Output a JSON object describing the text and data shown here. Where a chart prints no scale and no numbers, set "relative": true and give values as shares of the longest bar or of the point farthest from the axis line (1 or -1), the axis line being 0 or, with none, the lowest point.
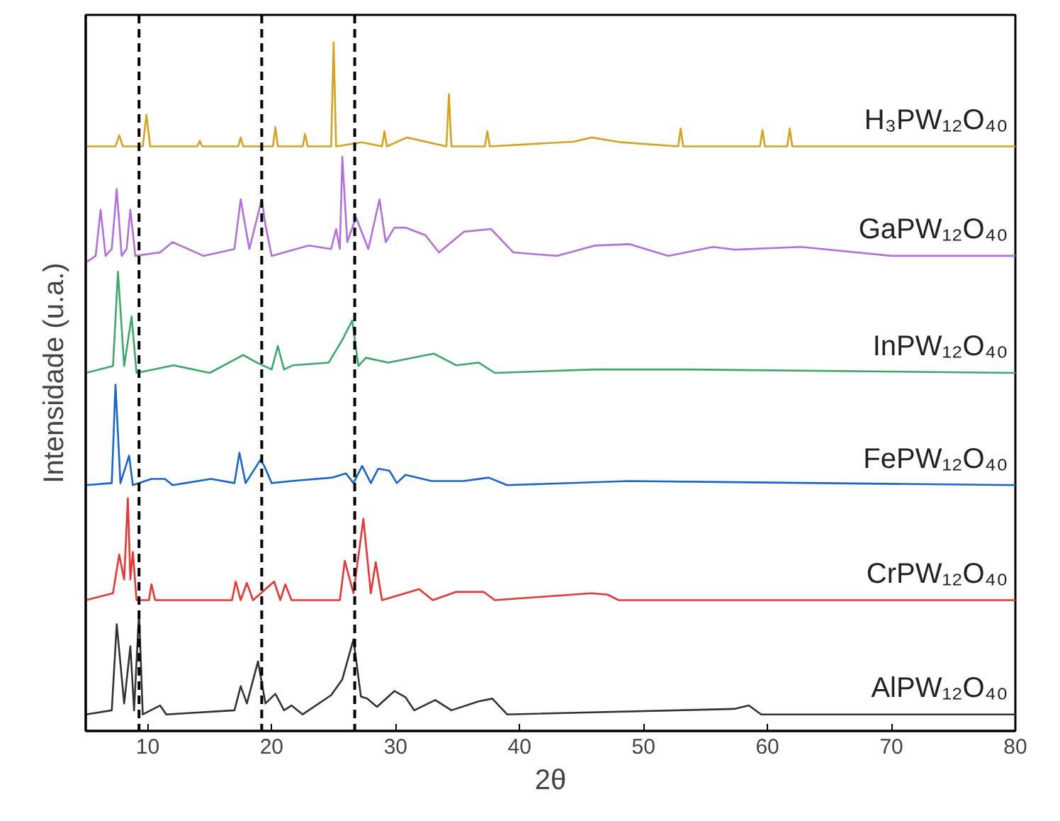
{
  "chart_data": {
    "type": "line",
    "relative": true,
    "xlabel": "2θ",
    "ylabel": "Intensidade (u.a.)",
    "xlim": [
      5,
      80
    ],
    "xticks": [
      10,
      20,
      30,
      40,
      50,
      60,
      70,
      80
    ],
    "ylim": [
      0,
      1.04
    ],
    "tick_labels": "x",
    "grid": false,
    "legend": false,
    "marker": "none",
    "line_style": "solid",
    "ref_lines": [
      {
        "axis": "x",
        "value": 9.3,
        "color": "#000000",
        "line_style": "dashed"
      },
      {
        "axis": "x",
        "value": 19.2,
        "color": "#000000",
        "line_style": "dashed"
      },
      {
        "axis": "x",
        "value": 26.7,
        "color": "#000000",
        "line_style": "dashed"
      }
    ],
    "series": [
      {
        "name": "AlPW₁₂O₄₀",
        "color": "#333333",
        "x": [
          5,
          7.1,
          7.5,
          8.1,
          8.6,
          8.9,
          9.3,
          9.6,
          11.0,
          11.5,
          17.0,
          17.5,
          18.0,
          18.9,
          19.5,
          20.3,
          21.0,
          21.6,
          22.5,
          24.8,
          25.7,
          26.6,
          27.2,
          27.7,
          28.5,
          29.9,
          30.8,
          31.5,
          33.2,
          34.5,
          36.7,
          37.8,
          39.0,
          57.3,
          58.5,
          59.5,
          80
        ],
        "values": [
          0.024,
          0.03,
          0.155,
          0.04,
          0.123,
          0.03,
          0.172,
          0.024,
          0.037,
          0.024,
          0.03,
          0.065,
          0.04,
          0.101,
          0.04,
          0.054,
          0.03,
          0.037,
          0.024,
          0.052,
          0.075,
          0.133,
          0.05,
          0.047,
          0.035,
          0.058,
          0.049,
          0.03,
          0.045,
          0.03,
          0.043,
          0.047,
          0.024,
          0.032,
          0.037,
          0.024,
          0.024
        ]
      },
      {
        "name": "CrPW₁₂O₄₀",
        "color": "#ee3333",
        "x": [
          5,
          7.2,
          7.7,
          8.1,
          8.4,
          8.6,
          8.8,
          9.1,
          10.1,
          10.3,
          10.6,
          16.8,
          17.1,
          17.5,
          18.0,
          18.5,
          20.2,
          20.7,
          21.1,
          21.6,
          25.5,
          25.9,
          26.6,
          27.4,
          28.0,
          28.4,
          28.9,
          31.9,
          33.0,
          34.9,
          37.1,
          38.0,
          45.8,
          47.1,
          48.0,
          80
        ],
        "values": [
          0.19,
          0.2,
          0.256,
          0.22,
          0.338,
          0.22,
          0.26,
          0.19,
          0.19,
          0.213,
          0.19,
          0.19,
          0.217,
          0.19,
          0.215,
          0.19,
          0.217,
          0.19,
          0.213,
          0.19,
          0.19,
          0.247,
          0.2,
          0.308,
          0.2,
          0.245,
          0.19,
          0.206,
          0.19,
          0.202,
          0.202,
          0.19,
          0.2,
          0.198,
          0.19,
          0.19
        ]
      },
      {
        "name": "FePW₁₂O₄₀",
        "color": "#1565d8",
        "x": [
          5,
          7.1,
          7.4,
          7.8,
          8.5,
          8.8,
          10.3,
          11.4,
          12.0,
          15.1,
          17.0,
          17.4,
          17.9,
          19.1,
          19.4,
          20.0,
          21.6,
          24.9,
          26.0,
          26.6,
          27.3,
          28.0,
          28.6,
          29.5,
          30.1,
          30.8,
          32.9,
          35.5,
          37.5,
          39.0,
          48.8,
          80
        ],
        "values": [
          0.357,
          0.36,
          0.503,
          0.36,
          0.4,
          0.357,
          0.366,
          0.366,
          0.357,
          0.366,
          0.36,
          0.404,
          0.36,
          0.394,
          0.385,
          0.36,
          0.363,
          0.368,
          0.374,
          0.36,
          0.385,
          0.36,
          0.381,
          0.378,
          0.36,
          0.372,
          0.363,
          0.363,
          0.368,
          0.357,
          0.363,
          0.357
        ]
      },
      {
        "name": "InPW₁₂O₄₀",
        "color": "#3aaa6a",
        "x": [
          5,
          7.2,
          7.6,
          8.1,
          8.7,
          9.1,
          12.1,
          15.0,
          17.7,
          18.8,
          20.0,
          20.5,
          21.0,
          21.7,
          24.6,
          25.7,
          26.5,
          27.0,
          27.6,
          29.4,
          33.1,
          34.9,
          36.7,
          38.0,
          46.1,
          53.8,
          80
        ],
        "values": [
          0.52,
          0.53,
          0.667,
          0.53,
          0.602,
          0.52,
          0.531,
          0.52,
          0.546,
          0.535,
          0.525,
          0.559,
          0.525,
          0.531,
          0.535,
          0.568,
          0.596,
          0.53,
          0.542,
          0.535,
          0.548,
          0.531,
          0.535,
          0.52,
          0.525,
          0.525,
          0.52
        ]
      },
      {
        "name": "GaPW₁₂O₄₀",
        "color": "#b36ee0",
        "x": [
          5,
          5.8,
          6.2,
          6.6,
          7.1,
          7.5,
          7.9,
          8.3,
          8.6,
          9.0,
          11.0,
          12.0,
          14.5,
          17.0,
          17.5,
          18.2,
          19.2,
          19.5,
          20.0,
          21.0,
          23.0,
          24.8,
          25.2,
          25.5,
          25.7,
          26.1,
          26.8,
          27.8,
          28.7,
          29.2,
          29.9,
          30.8,
          32.4,
          33.5,
          35.5,
          37.7,
          39.5,
          43.0,
          46.1,
          48.9,
          52.0,
          55.6,
          57.4,
          62.7,
          70.0,
          80
        ],
        "values": [
          0.68,
          0.69,
          0.757,
          0.69,
          0.7,
          0.787,
          0.69,
          0.7,
          0.757,
          0.69,
          0.695,
          0.71,
          0.69,
          0.7,
          0.772,
          0.7,
          0.772,
          0.735,
          0.69,
          0.695,
          0.705,
          0.7,
          0.729,
          0.7,
          0.834,
          0.71,
          0.746,
          0.7,
          0.772,
          0.71,
          0.731,
          0.731,
          0.72,
          0.695,
          0.725,
          0.729,
          0.695,
          0.69,
          0.705,
          0.707,
          0.69,
          0.703,
          0.699,
          0.703,
          0.69,
          0.69
        ]
      },
      {
        "name": "H₃PW₁₂O₄₀",
        "color": "#d9a21b",
        "x": [
          5,
          7.4,
          7.7,
          8.0,
          9.6,
          9.9,
          10.2,
          14.0,
          14.2,
          14.4,
          17.3,
          17.5,
          17.7,
          20.1,
          20.3,
          20.5,
          22.5,
          22.7,
          22.9,
          24.8,
          25.0,
          25.2,
          27.3,
          28.9,
          29.1,
          29.3,
          30.9,
          34.1,
          34.3,
          34.5,
          37.2,
          37.4,
          37.6,
          44.4,
          45.8,
          48.2,
          52.8,
          53.0,
          53.2,
          59.4,
          59.6,
          59.8,
          61.6,
          61.8,
          62.0,
          80
        ],
        "values": [
          0.849,
          0.849,
          0.865,
          0.849,
          0.849,
          0.895,
          0.849,
          0.849,
          0.857,
          0.849,
          0.849,
          0.862,
          0.849,
          0.849,
          0.877,
          0.849,
          0.849,
          0.867,
          0.849,
          0.849,
          1.0,
          0.849,
          0.855,
          0.849,
          0.871,
          0.849,
          0.862,
          0.849,
          0.925,
          0.849,
          0.849,
          0.871,
          0.849,
          0.856,
          0.862,
          0.855,
          0.849,
          0.875,
          0.849,
          0.849,
          0.873,
          0.849,
          0.849,
          0.875,
          0.849,
          0.849
        ]
      }
    ]
  }
}
